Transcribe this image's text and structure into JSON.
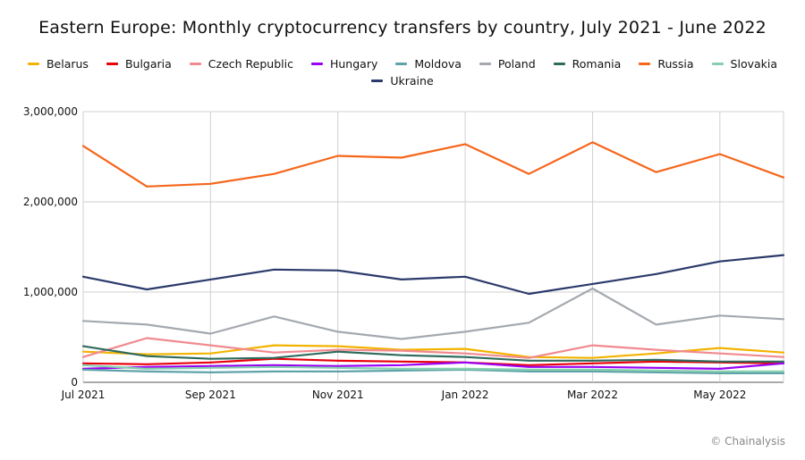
{
  "chart_data": {
    "type": "line",
    "title": "Eastern Europe: Monthly cryptocurrency transfers by country, July 2021 - June 2022",
    "xlabel": "",
    "ylabel": "",
    "x": [
      "2021-07",
      "2021-08",
      "2021-09",
      "2021-10",
      "2021-11",
      "2021-12",
      "2022-01",
      "2022-02",
      "2022-03",
      "2022-04",
      "2022-05",
      "2022-06"
    ],
    "x_tick_labels": [
      "Jul 2021",
      "Sep 2021",
      "Nov 2021",
      "Jan 2022",
      "Mar 2022",
      "May 2022"
    ],
    "x_tick_indices": [
      0,
      2,
      4,
      6,
      8,
      10
    ],
    "ylim": [
      0,
      3000000
    ],
    "y_ticks": [
      0,
      1000000,
      2000000,
      3000000
    ],
    "y_tick_labels": [
      "0",
      "1,000,000",
      "2,000,000",
      "3,000,000"
    ],
    "grid": "vertical and horizontal",
    "legend_position": "top",
    "series": [
      {
        "name": "Belarus",
        "color": "#f2b300",
        "values": [
          340000,
          310000,
          320000,
          410000,
          400000,
          360000,
          370000,
          280000,
          270000,
          320000,
          380000,
          330000
        ]
      },
      {
        "name": "Bulgaria",
        "color": "#e8000b",
        "values": [
          210000,
          200000,
          220000,
          260000,
          240000,
          230000,
          220000,
          190000,
          210000,
          230000,
          220000,
          210000
        ]
      },
      {
        "name": "Czech Republic",
        "color": "#f08a8f",
        "values": [
          280000,
          490000,
          410000,
          330000,
          360000,
          350000,
          320000,
          270000,
          410000,
          360000,
          320000,
          280000
        ]
      },
      {
        "name": "Hungary",
        "color": "#9a00f5",
        "values": [
          150000,
          170000,
          180000,
          190000,
          180000,
          190000,
          220000,
          170000,
          170000,
          160000,
          150000,
          210000
        ]
      },
      {
        "name": "Moldova",
        "color": "#5fa3aa",
        "values": [
          140000,
          120000,
          110000,
          120000,
          120000,
          130000,
          140000,
          120000,
          120000,
          110000,
          100000,
          100000
        ]
      },
      {
        "name": "Poland",
        "color": "#a4a9b0",
        "values": [
          680000,
          640000,
          540000,
          730000,
          560000,
          480000,
          560000,
          660000,
          1040000,
          640000,
          740000,
          700000
        ]
      },
      {
        "name": "Romania",
        "color": "#2e6b5c",
        "values": [
          400000,
          290000,
          260000,
          270000,
          340000,
          300000,
          280000,
          240000,
          240000,
          250000,
          230000,
          230000
        ]
      },
      {
        "name": "Russia",
        "color": "#f5661b",
        "values": [
          2620000,
          2170000,
          2200000,
          2310000,
          2510000,
          2490000,
          2640000,
          2310000,
          2660000,
          2330000,
          2530000,
          2270000
        ]
      },
      {
        "name": "Slovakia",
        "color": "#86cfae",
        "values": [
          190000,
          150000,
          160000,
          170000,
          160000,
          150000,
          150000,
          140000,
          140000,
          130000,
          120000,
          120000
        ]
      },
      {
        "name": "Ukraine",
        "color": "#2b3a6b",
        "values": [
          1170000,
          1030000,
          1140000,
          1250000,
          1240000,
          1140000,
          1170000,
          980000,
          1090000,
          1200000,
          1340000,
          1410000
        ]
      }
    ]
  },
  "credit": "© Chainalysis"
}
